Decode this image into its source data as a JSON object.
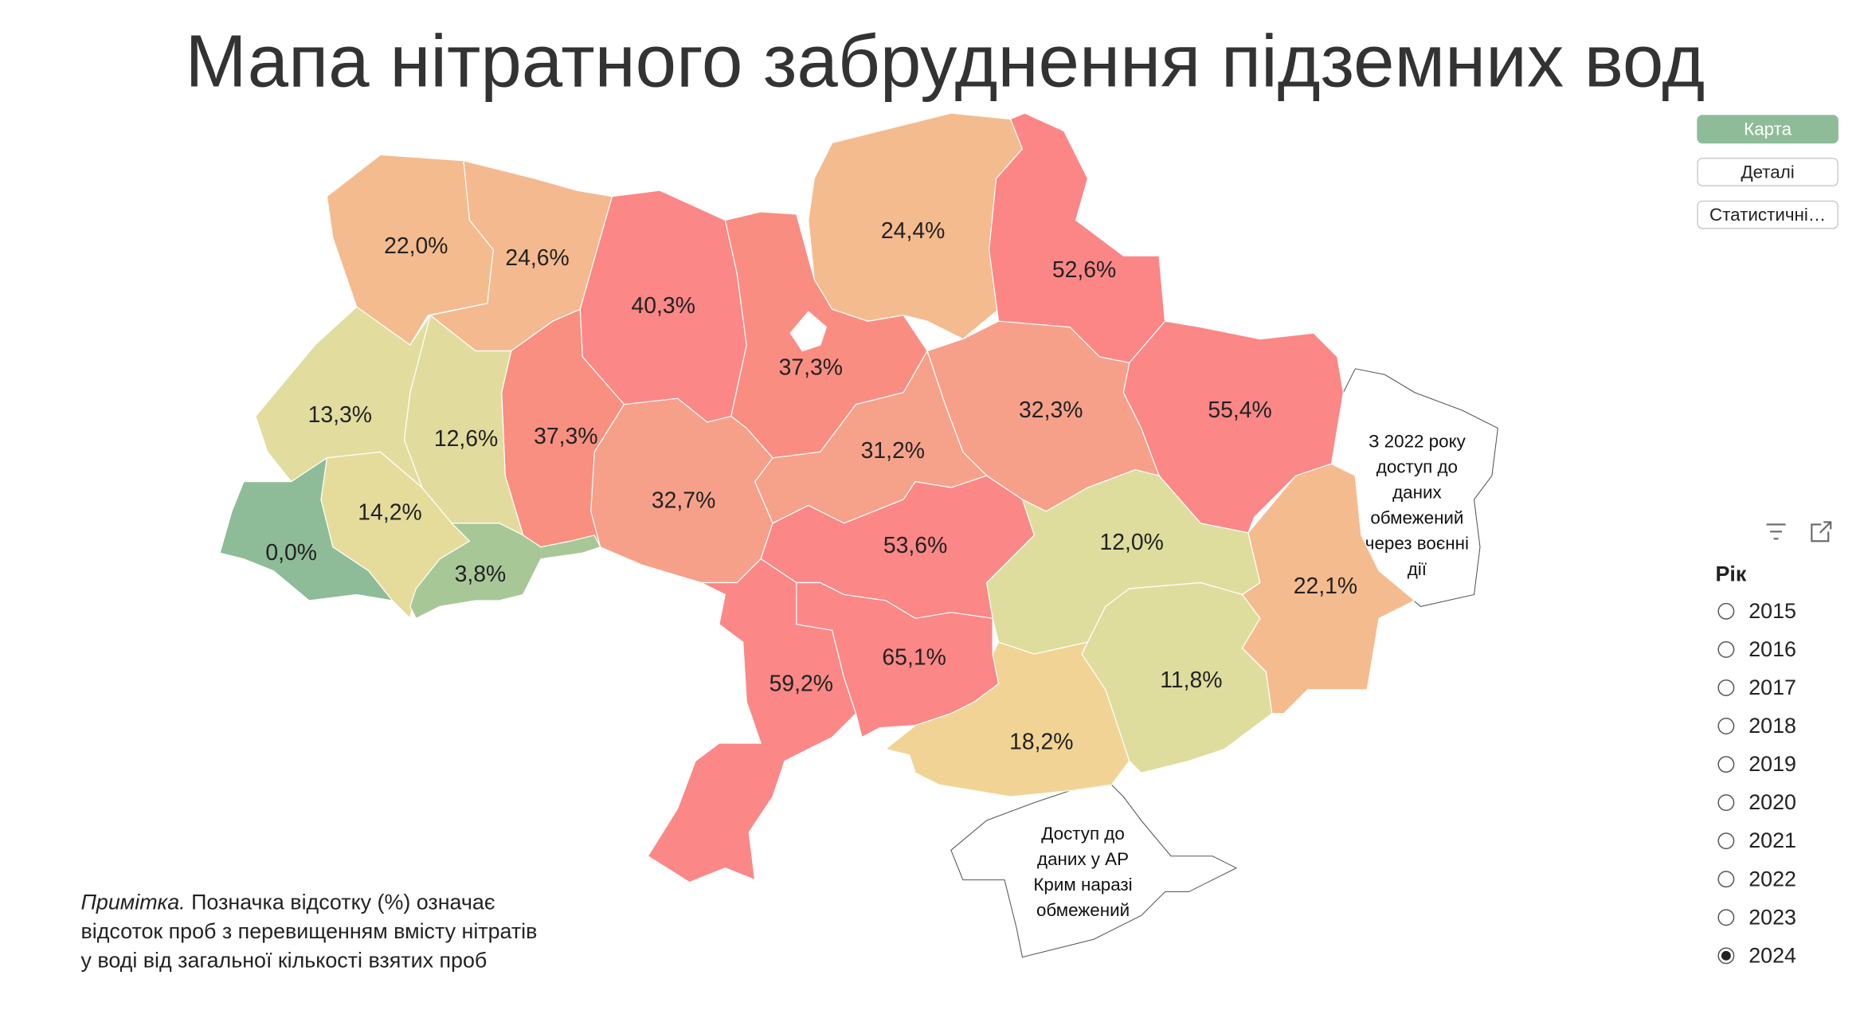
{
  "header": {
    "title": "Мапа нітратного забруднення підземних вод"
  },
  "nav": [
    "Карта",
    "Деталі",
    "Статистичні…"
  ],
  "map": {
    "regions": [
      {
        "label": "22,0%",
        "color": "#f4bb8f"
      },
      {
        "label": "24,6%",
        "color": "#f4b98e"
      },
      {
        "label": "40,3%",
        "color": "#fb8787"
      },
      {
        "label": "24,4%",
        "color": "#f4bb8f"
      },
      {
        "label": "37,3%",
        "color": "#fa8d82"
      },
      {
        "label": "52,6%",
        "color": "#fc8686"
      },
      {
        "label": "55,4%",
        "color": "#fb8787"
      },
      {
        "label": "32,3%",
        "color": "#f6a08a"
      },
      {
        "label": "31,2%",
        "color": "#f6a28a"
      },
      {
        "label": "32,7%",
        "color": "#f6a08a"
      },
      {
        "label": "37,3%",
        "color": "#f88f80"
      },
      {
        "label": "12,6%",
        "color": "#e1dc9e"
      },
      {
        "label": "13,3%",
        "color": "#e2dc9e"
      },
      {
        "label": "14,2%",
        "color": "#e5dc9c"
      },
      {
        "label": "0,0%",
        "color": "#8fbc98"
      },
      {
        "label": "3,8%",
        "color": "#a8c797"
      },
      {
        "label": "53,6%",
        "color": "#fb8787"
      },
      {
        "label": "59,2%",
        "color": "#fb8787"
      },
      {
        "label": "65,1%",
        "color": "#fb8787"
      },
      {
        "label": "12,0%",
        "color": "#dedd9d"
      },
      {
        "label": "11,8%",
        "color": "#dedd9d"
      },
      {
        "label": "18,2%",
        "color": "#f1d495"
      },
      {
        "label": "22,1%",
        "color": "#f4bb8f"
      }
    ],
    "annotations": [
      [
        "З 2022 року",
        "доступ до",
        "даних",
        "обмежений",
        "через воєнні",
        "дії"
      ],
      [
        "Доступ до",
        "даних у АР",
        "Крим наразі",
        "обмежений"
      ]
    ]
  },
  "note": {
    "lead": "Примітка.",
    "lines": [
      "Позначка відсотку (%) означає",
      "відсоток проб з перевищенням вмісту нітратів",
      "у воді від загальної кількості взятих проб"
    ]
  },
  "filter": {
    "title": "Рік",
    "options": [
      "2015",
      "2016",
      "2017",
      "2018",
      "2019",
      "2020",
      "2021",
      "2022",
      "2023",
      "2024"
    ],
    "selected": "2024"
  }
}
